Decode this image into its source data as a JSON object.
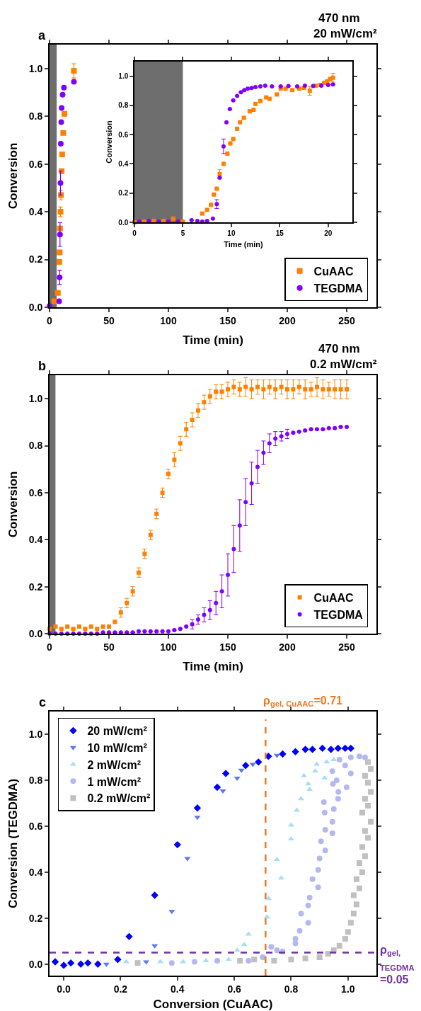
{
  "chart_data": [
    {
      "type": "scatter",
      "title": "470 nm",
      "subtitle": "20 mW/cm²",
      "xlabel": "Time (min)",
      "ylabel": "Conversion",
      "annotations": [
        "a"
      ],
      "legend": "bottom right",
      "xlim": [
        0,
        275
      ],
      "xticks": [
        0,
        50,
        100,
        150,
        200,
        250
      ],
      "ylim": [
        0,
        1.1
      ],
      "yticks": [
        {
          "value": 0,
          "label": "0.0"
        },
        {
          "value": 0.2,
          "label": "0.2"
        },
        {
          "value": 0.4,
          "label": "0.4"
        },
        {
          "value": 0.6,
          "label": "0.6"
        },
        {
          "value": 0.8,
          "label": "0.8"
        },
        {
          "value": 1.0,
          "label": "1.0"
        }
      ],
      "bands": [
        {
          "axis": "x",
          "from": 0,
          "to": 6,
          "color": "#6e6e6e"
        }
      ],
      "series": [
        {
          "name": "CuAAC",
          "color": "#ff8000",
          "marker": "square",
          "x": [
            4,
            7,
            8.2,
            8.5,
            8.8,
            9.2,
            9.6,
            10.2,
            10.6,
            11.55,
            12.5,
            20.5
          ],
          "values": [
            0.025,
            0.06,
            0.19,
            0.23,
            0.33,
            0.4,
            0.47,
            0.57,
            0.64,
            0.73,
            0.81,
            0.99
          ],
          "errors": [
            null,
            null,
            null,
            null,
            null,
            0.02,
            0.02,
            null,
            null,
            null,
            null,
            0.03
          ]
        },
        {
          "name": "TEGDMA",
          "color": "#8000ff",
          "marker": "circle",
          "x": [
            0,
            8.1,
            8.5,
            8.8,
            9.2,
            9.5,
            9.85,
            10.2,
            11,
            12.1,
            20.5
          ],
          "values": [
            0.005,
            0.025,
            0.125,
            0.305,
            0.52,
            0.685,
            0.775,
            0.835,
            0.89,
            0.92,
            0.944
          ],
          "errors": [
            null,
            null,
            0.03,
            0.05,
            0.05,
            null,
            null,
            null,
            null,
            null,
            null
          ]
        }
      ]
    },
    {
      "type": "scatter",
      "xlabel": "Time (min)",
      "ylabel": "Conversion",
      "xlim": [
        0,
        22.5
      ],
      "xticks": [
        0,
        5,
        10,
        15,
        20
      ],
      "ylim": [
        0,
        1.1
      ],
      "yticks": [
        {
          "value": 0,
          "label": "0.0"
        },
        {
          "value": 0.2,
          "label": "0.2"
        },
        {
          "value": 0.4,
          "label": "0.4"
        },
        {
          "value": 0.6,
          "label": "0.6"
        },
        {
          "value": 0.8,
          "label": "0.8"
        },
        {
          "value": 1.0,
          "label": "1.0"
        }
      ],
      "bands": [
        {
          "axis": "x",
          "from": 0,
          "to": 5,
          "color": "#6e6e6e"
        }
      ],
      "series": [
        {
          "color": "#ff8000",
          "marker": "square",
          "x": [
            0,
            1,
            2,
            3,
            4,
            5,
            7,
            7.5,
            7.9,
            8.2,
            8.5,
            8.8,
            9.2,
            9.6,
            9.9,
            10.2,
            10.6,
            10.9,
            11.3,
            11.9,
            12.3,
            12.5,
            13,
            13.6,
            13.95,
            14.7,
            15.1,
            15.6,
            16.3,
            17,
            17.5,
            18.1,
            18.7,
            19.2,
            19.6,
            19.9,
            20.2,
            20.5
          ],
          "values": [
            0,
            0.005,
            0.01,
            0.01,
            0.025,
            0.005,
            0.06,
            0.085,
            0.12,
            0.19,
            0.23,
            0.33,
            0.4,
            0.47,
            0.54,
            0.57,
            0.64,
            0.685,
            0.715,
            0.76,
            0.77,
            0.81,
            0.83,
            0.855,
            0.845,
            0.875,
            0.915,
            0.915,
            0.905,
            0.915,
            0.92,
            0.9,
            0.935,
            0.94,
            0.955,
            0.965,
            0.98,
            0.99
          ],
          "errors": [
            null,
            null,
            null,
            null,
            null,
            null,
            null,
            null,
            null,
            null,
            null,
            0.03,
            null,
            null,
            null,
            null,
            null,
            null,
            null,
            null,
            null,
            null,
            null,
            null,
            null,
            null,
            null,
            null,
            null,
            null,
            null,
            0.03,
            null,
            null,
            null,
            null,
            null,
            0.03
          ]
        },
        {
          "color": "#8000ff",
          "marker": "circle",
          "x": [
            0.5,
            1.5,
            2.5,
            3.5,
            4.5,
            5.9,
            6.5,
            7,
            7.5,
            8.1,
            8.5,
            8.8,
            9.2,
            9.5,
            9.85,
            10.2,
            10.6,
            11,
            11.35,
            11.7,
            12.1,
            12.5,
            13,
            13.5,
            14.2,
            15.1,
            15.9,
            16.8,
            17.6,
            18.45,
            19.3,
            20,
            20.5
          ],
          "values": [
            0.005,
            0.01,
            0.005,
            0.005,
            0.005,
            0.015,
            0.01,
            0.005,
            0.01,
            0.025,
            0.125,
            0.305,
            0.52,
            0.685,
            0.775,
            0.835,
            0.865,
            0.89,
            0.905,
            0.915,
            0.92,
            0.925,
            0.93,
            0.935,
            0.93,
            0.93,
            0.933,
            0.93,
            0.935,
            0.933,
            0.935,
            0.94,
            0.944
          ],
          "errors": [
            null,
            null,
            null,
            null,
            null,
            null,
            null,
            null,
            null,
            null,
            0.03,
            null,
            0.05,
            null,
            null,
            null,
            null,
            null,
            null,
            null,
            null,
            null,
            null,
            null,
            null,
            null,
            null,
            null,
            null,
            null,
            null,
            null,
            null
          ]
        }
      ]
    },
    {
      "type": "scatter",
      "title": "470 nm",
      "subtitle": "0.2 mW/cm²",
      "xlabel": "Time (min)",
      "ylabel": "Conversion",
      "annotations": [
        "b"
      ],
      "legend": "bottom right",
      "xlim": [
        0,
        275
      ],
      "xticks": [
        0,
        50,
        100,
        150,
        200,
        250
      ],
      "ylim": [
        0,
        1.1
      ],
      "yticks": [
        {
          "value": 0,
          "label": "0.0"
        },
        {
          "value": 0.2,
          "label": "0.2"
        },
        {
          "value": 0.4,
          "label": "0.4"
        },
        {
          "value": 0.6,
          "label": "0.6"
        },
        {
          "value": 0.8,
          "label": "0.8"
        },
        {
          "value": 1.0,
          "label": "1.0"
        }
      ],
      "bands": [
        {
          "axis": "x",
          "from": 0,
          "to": 5,
          "color": "#6e6e6e"
        }
      ],
      "series": [
        {
          "name": "CuAAC",
          "color": "#ff8000",
          "marker": "square",
          "x": [
            0,
            5,
            10,
            15,
            20,
            25,
            30,
            35,
            40,
            45,
            50,
            55,
            60,
            65,
            70,
            75,
            80,
            85,
            90,
            95,
            100,
            105,
            110,
            115,
            120,
            125,
            130,
            135,
            140,
            145,
            150,
            155,
            160,
            165,
            170,
            175,
            180,
            185,
            190,
            195,
            200,
            205,
            210,
            215,
            220,
            225,
            230,
            235,
            240,
            245,
            250
          ],
          "values": [
            0.02,
            0.03,
            0.02,
            0.03,
            0.02,
            0.03,
            0.02,
            0.03,
            0.02,
            0.03,
            0.03,
            0.05,
            0.09,
            0.13,
            0.18,
            0.26,
            0.34,
            0.42,
            0.51,
            0.6,
            0.68,
            0.74,
            0.81,
            0.87,
            0.91,
            0.95,
            0.985,
            1.01,
            1.03,
            1.03,
            1.04,
            1.05,
            1.04,
            1.05,
            1.04,
            1.05,
            1.04,
            1.05,
            1.04,
            1.05,
            1.04,
            1.04,
            1.05,
            1.04,
            1.04,
            1.05,
            1.04,
            1.04,
            1.04,
            1.04,
            1.04
          ],
          "errors": [
            null,
            null,
            null,
            null,
            null,
            null,
            null,
            null,
            null,
            null,
            null,
            null,
            0.02,
            0.02,
            0.02,
            0.02,
            0.02,
            0.02,
            0.02,
            0.02,
            0.02,
            0.03,
            0.03,
            0.03,
            0.03,
            0.03,
            0.03,
            0.03,
            0.03,
            0.03,
            0.03,
            0.03,
            0.03,
            0.04,
            0.04,
            0.03,
            0.04,
            0.03,
            0.04,
            0.03,
            0.04,
            0.04,
            0.03,
            0.04,
            0.03,
            0.04,
            0.04,
            0.03,
            0.04,
            0.04,
            0.04
          ]
        },
        {
          "name": "TEGDMA",
          "color": "#8000ff",
          "marker": "circle",
          "x": [
            0,
            5,
            10,
            15,
            20,
            25,
            30,
            35,
            40,
            45,
            50,
            55,
            60,
            65,
            70,
            75,
            80,
            85,
            90,
            95,
            100,
            105,
            110,
            115,
            120,
            125,
            130,
            135,
            140,
            145,
            150,
            155,
            160,
            165,
            170,
            175,
            180,
            185,
            190,
            195,
            200,
            205,
            210,
            215,
            220,
            225,
            230,
            235,
            240,
            245,
            250
          ],
          "values": [
            0,
            0,
            0,
            0,
            0,
            0,
            0,
            0,
            0,
            0.005,
            0.005,
            0.005,
            0.005,
            0.005,
            0.005,
            0.01,
            0.01,
            0.01,
            0.01,
            0.01,
            0.01,
            0.015,
            0.02,
            0.03,
            0.04,
            0.06,
            0.08,
            0.1,
            0.13,
            0.18,
            0.25,
            0.36,
            0.46,
            0.56,
            0.64,
            0.71,
            0.77,
            0.81,
            0.83,
            0.84,
            0.85,
            0.855,
            0.86,
            0.865,
            0.87,
            0.87,
            0.87,
            0.875,
            0.875,
            0.88,
            0.88
          ],
          "errors": [
            null,
            null,
            null,
            null,
            null,
            null,
            null,
            null,
            null,
            null,
            null,
            null,
            null,
            null,
            null,
            null,
            null,
            null,
            null,
            null,
            null,
            null,
            null,
            null,
            0.02,
            0.02,
            0.03,
            0.04,
            0.05,
            0.07,
            0.09,
            0.1,
            0.11,
            0.1,
            0.09,
            0.07,
            0.05,
            0.04,
            0.03,
            0.02,
            0.02,
            null,
            null,
            null,
            null,
            null,
            null,
            null,
            null,
            null,
            null
          ]
        }
      ]
    },
    {
      "type": "scatter",
      "xlabel": "Conversion (CuAAC)",
      "ylabel": "Conversion (TEGDMA)",
      "annotations": [
        "c"
      ],
      "legend": "top left",
      "xlim": [
        -0.05,
        1.1
      ],
      "xticks": [
        {
          "value": 0,
          "label": "0.0"
        },
        {
          "value": 0.2,
          "label": "0.2"
        },
        {
          "value": 0.4,
          "label": "0.4"
        },
        {
          "value": 0.6,
          "label": "0.6"
        },
        {
          "value": 0.8,
          "label": "0.8"
        },
        {
          "value": 1.0,
          "label": "1.0"
        }
      ],
      "ylim": [
        -0.05,
        1.1
      ],
      "yticks": [
        {
          "value": 0,
          "label": "0.0"
        },
        {
          "value": 0.2,
          "label": "0.2"
        },
        {
          "value": 0.4,
          "label": "0.4"
        },
        {
          "value": 0.6,
          "label": "0.6"
        },
        {
          "value": 0.8,
          "label": "0.8"
        },
        {
          "value": 1.0,
          "label": "1.0"
        }
      ],
      "ref_lines": [
        {
          "axis": "x",
          "value": 0.71,
          "label": "ρ$_{gel, CuAAC}$=0.71",
          "color": "#f07820",
          "line_style": "dashed"
        },
        {
          "axis": "y",
          "value": 0.05,
          "label": "ρ$_{gel, TEGDMA}$=0.05",
          "color": "#7030a0",
          "line_style": "dashed"
        }
      ],
      "series": [
        {
          "name": "0.2 mW/cm²",
          "color": "#c0c0c0",
          "marker": "square",
          "x": [
            0.26,
            0.62,
            0.67,
            0.74,
            0.8,
            0.85,
            0.9,
            0.93,
            0.95,
            0.97,
            0.99,
            1.0,
            1.01,
            1.02,
            1.03,
            1.02,
            1.04,
            1.03,
            1.05,
            1.04,
            1.06,
            1.05,
            1.07,
            1.06,
            1.08,
            1.05,
            1.07,
            1.06,
            1.08,
            1.07,
            1.06,
            1.08,
            1.07
          ],
          "values": [
            0.005,
            0.015,
            0.02,
            0.015,
            0.02,
            0.025,
            0.03,
            0.045,
            0.06,
            0.08,
            0.11,
            0.14,
            0.18,
            0.22,
            0.26,
            0.3,
            0.33,
            0.37,
            0.4,
            0.44,
            0.47,
            0.51,
            0.55,
            0.58,
            0.62,
            0.66,
            0.69,
            0.72,
            0.75,
            0.79,
            0.82,
            0.85,
            0.88
          ]
        },
        {
          "name": "1 mW/cm²",
          "color": "#b4b8f0",
          "marker": "circle",
          "x": [
            0.38,
            0.46,
            0.54,
            0.65,
            0.7,
            0.73,
            0.75,
            0.77,
            0.815,
            0.815,
            0.83,
            0.835,
            0.86,
            0.86,
            0.865,
            0.895,
            0.875,
            0.895,
            0.9,
            0.905,
            0.92,
            0.92,
            0.918,
            0.915,
            0.945,
            0.945,
            0.95,
            0.965,
            0.966,
            0.947,
            0.96,
            0.945,
            0.995,
            1.01,
            0.99,
            0.97,
            1.01,
            1.04,
            1.06
          ],
          "values": [
            0.005,
            0.01,
            0.015,
            0.015,
            0.03,
            0.075,
            0.06,
            0.055,
            0.09,
            0.11,
            0.145,
            0.22,
            0.18,
            0.255,
            0.29,
            0.335,
            0.37,
            0.41,
            0.46,
            0.535,
            0.495,
            0.585,
            0.66,
            0.705,
            0.57,
            0.62,
            0.675,
            0.72,
            0.75,
            0.785,
            0.8,
            0.84,
            0.77,
            0.83,
            0.865,
            0.89,
            0.9,
            0.905,
            0.9
          ]
        },
        {
          "name": "2 mW/cm²",
          "color": "#a8dcf8",
          "marker": "triangle",
          "x": [
            0.22,
            0.34,
            0.42,
            0.5,
            0.58,
            0.61,
            0.635,
            0.65,
            0.715,
            0.72,
            0.765,
            0.75,
            0.8,
            0.8,
            0.82,
            0.835,
            0.865,
            0.86,
            0.845,
            0.918,
            0.885,
            0.89,
            0.925,
            0.95
          ],
          "values": [
            0.01,
            0.01,
            0.01,
            0.015,
            0.02,
            0.06,
            0.085,
            0.13,
            0.205,
            0.285,
            0.375,
            0.455,
            0.545,
            0.605,
            0.67,
            0.72,
            0.76,
            0.785,
            0.82,
            0.81,
            0.84,
            0.87,
            0.88,
            0.89
          ]
        },
        {
          "name": "10 mW/cm²",
          "color": "#5a78f0",
          "marker": "triangle-down",
          "x": [
            0.15,
            0.29,
            0.32,
            0.38,
            0.435,
            0.47,
            0.56,
            0.61,
            0.625,
            0.665,
            0.75
          ],
          "values": [
            0,
            0.01,
            0.08,
            0.23,
            0.46,
            0.64,
            0.755,
            0.81,
            0.845,
            0.87,
            0.91
          ]
        },
        {
          "name": "20 mW/cm²",
          "color": "#0000ff",
          "marker": "diamond",
          "x": [
            -0.03,
            0,
            0.025,
            0.06,
            0.085,
            0.12,
            0.19,
            0.23,
            0.32,
            0.4,
            0.47,
            0.54,
            0.57,
            0.64,
            0.685,
            0.72,
            0.77,
            0.815,
            0.85,
            0.875,
            0.91,
            0.94,
            0.965,
            0.99,
            1.01
          ],
          "values": [
            0.01,
            -0.005,
            0.005,
            0,
            0.005,
            0,
            0.02,
            0.12,
            0.3,
            0.52,
            0.68,
            0.77,
            0.83,
            0.865,
            0.88,
            0.905,
            0.915,
            0.925,
            0.935,
            0.935,
            0.94,
            0.935,
            0.94,
            0.94,
            0.94
          ]
        }
      ]
    }
  ]
}
